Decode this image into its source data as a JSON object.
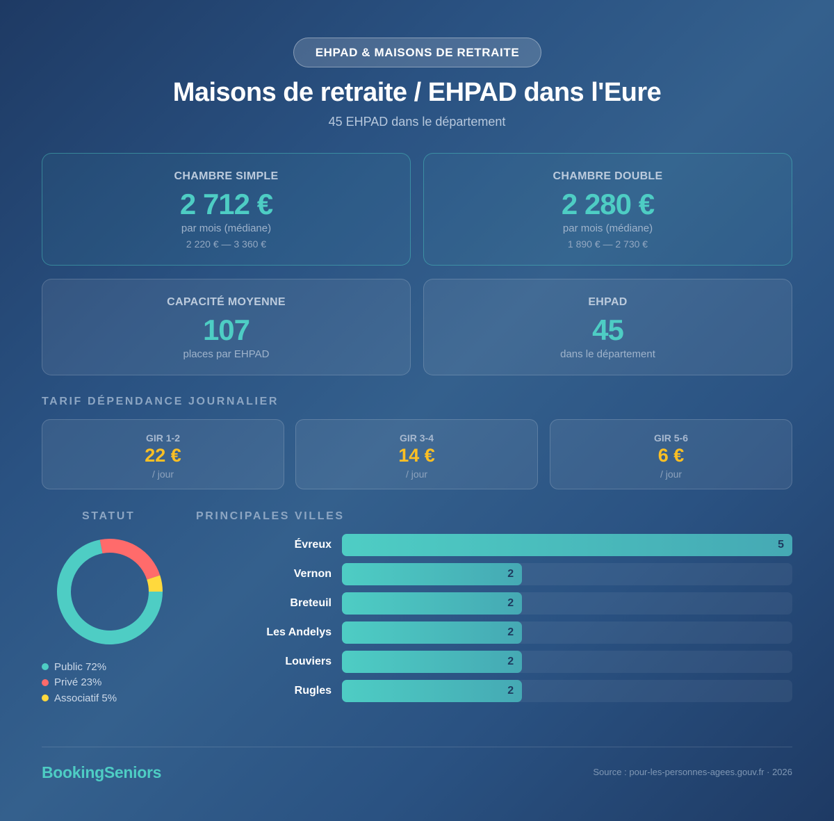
{
  "header": {
    "badge": "EHPAD & MAISONS DE RETRAITE",
    "title": "Maisons de retraite / EHPAD dans l'Eure",
    "subtitle": "45 EHPAD dans le département"
  },
  "cards": {
    "simple": {
      "label": "CHAMBRE SIMPLE",
      "value": "2 712 €",
      "sub": "par mois (médiane)",
      "range": "2 220 € — 3 360 €"
    },
    "double": {
      "label": "CHAMBRE DOUBLE",
      "value": "2 280 €",
      "sub": "par mois (médiane)",
      "range": "1 890 € — 2 730 €"
    },
    "capacity": {
      "label": "CAPACITÉ MOYENNE",
      "value": "107",
      "sub": "places par EHPAD"
    },
    "count": {
      "label": "EHPAD",
      "value": "45",
      "sub": "dans le département"
    }
  },
  "dependance": {
    "heading": "TARIF DÉPENDANCE JOURNALIER",
    "items": [
      {
        "label": "GIR 1-2",
        "value": "22 €",
        "unit": "/ jour"
      },
      {
        "label": "GIR 3-4",
        "value": "14 €",
        "unit": "/ jour"
      },
      {
        "label": "GIR 5-6",
        "value": "6 €",
        "unit": "/ jour"
      }
    ]
  },
  "statut": {
    "heading": "STATUT",
    "legend": [
      {
        "label": "Public 72%",
        "color": "#4ecdc4"
      },
      {
        "label": "Privé 23%",
        "color": "#ff6b6b"
      },
      {
        "label": "Associatif 5%",
        "color": "#ffd93d"
      }
    ]
  },
  "villes": {
    "heading": "PRINCIPALES VILLES",
    "rows": [
      {
        "city": "Évreux",
        "count": "5"
      },
      {
        "city": "Vernon",
        "count": "2"
      },
      {
        "city": "Breteuil",
        "count": "2"
      },
      {
        "city": "Les Andelys",
        "count": "2"
      },
      {
        "city": "Louviers",
        "count": "2"
      },
      {
        "city": "Rugles",
        "count": "2"
      }
    ]
  },
  "footer": {
    "brand": "BookingSeniors",
    "source": "Source : pour-les-personnes-agees.gouv.fr · 2026"
  },
  "colors": {
    "accent": "#4ecdc4",
    "gold": "#fbbf24",
    "public": "#4ecdc4",
    "prive": "#ff6b6b",
    "associatif": "#ffd93d"
  },
  "chart_data": [
    {
      "type": "pie",
      "title": "STATUT",
      "categories": [
        "Public",
        "Privé",
        "Associatif"
      ],
      "values": [
        72,
        23,
        5
      ],
      "colors": [
        "#4ecdc4",
        "#ff6b6b",
        "#ffd93d"
      ],
      "donut": true,
      "legend_position": "bottom"
    },
    {
      "type": "bar",
      "orientation": "horizontal",
      "title": "PRINCIPALES VILLES",
      "categories": [
        "Évreux",
        "Vernon",
        "Breteuil",
        "Les Andelys",
        "Louviers",
        "Rugles"
      ],
      "values": [
        5,
        2,
        2,
        2,
        2,
        2
      ],
      "xlim": [
        0,
        5
      ],
      "xlabel": "",
      "ylabel": ""
    }
  ]
}
